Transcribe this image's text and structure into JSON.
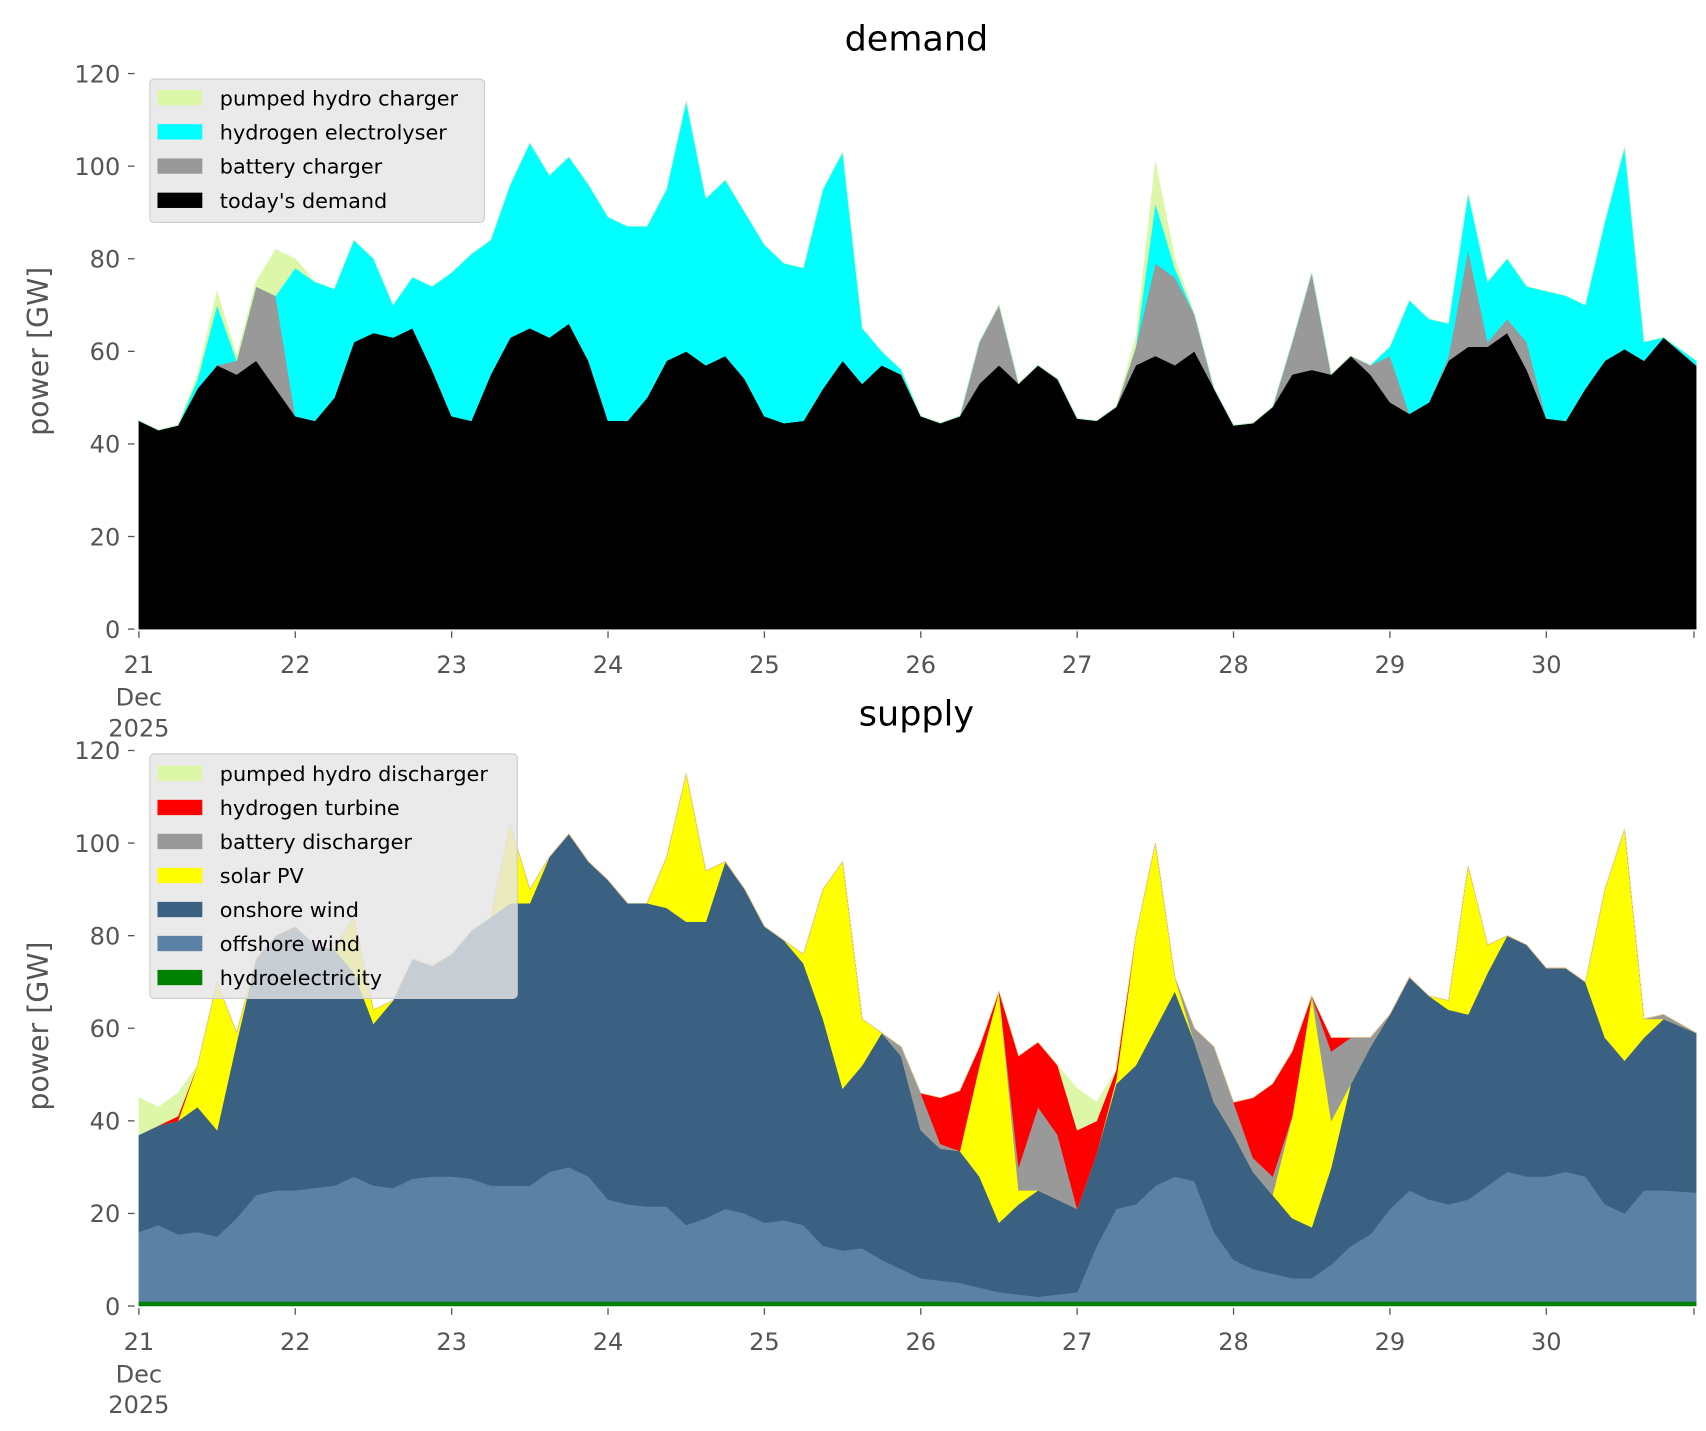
{
  "chart_data": [
    {
      "type": "area",
      "stacked": true,
      "title": "demand",
      "ylabel": "power [GW]",
      "xlabel": "",
      "ylim": [
        0,
        120
      ],
      "yticks": [
        0,
        20,
        40,
        60,
        80,
        100,
        120
      ],
      "x_start": "2025-12-21 00:00",
      "step_hours": 3,
      "xticks": [
        "21",
        "22",
        "23",
        "24",
        "25",
        "26",
        "27",
        "28",
        "29",
        "30"
      ],
      "xtick_sub": [
        "Dec",
        "2025"
      ],
      "grid": false,
      "legend_position": "top-left",
      "legend": [
        "pumped hydro charger",
        "hydrogen electrolyser",
        "battery charger",
        "today's demand"
      ],
      "series": [
        {
          "name": "today's demand",
          "color": "#000000",
          "values": [
            45,
            43,
            44,
            52,
            57,
            55,
            58,
            52,
            46,
            45,
            50,
            62,
            64,
            63,
            65,
            56,
            46,
            45,
            55,
            63,
            65,
            63,
            66,
            58,
            45,
            45,
            50,
            58,
            60,
            57,
            59,
            54,
            46,
            44.5,
            45,
            52,
            58,
            53,
            57,
            55,
            46,
            44.5,
            46,
            53,
            57,
            53,
            57,
            54,
            45.5,
            45,
            48,
            57,
            59,
            57,
            60,
            52,
            44,
            44.5,
            48,
            55,
            56,
            55,
            59,
            55,
            49,
            46.5,
            49,
            58,
            61,
            61,
            64,
            56,
            45.5,
            45,
            52,
            58,
            60.5,
            58,
            63,
            57
          ]
        },
        {
          "name": "battery charger",
          "color": "#999999",
          "values": [
            0,
            0,
            0,
            0,
            0,
            3,
            16,
            20,
            0,
            0,
            0,
            0,
            0,
            0,
            0,
            0,
            0,
            0,
            0,
            0,
            0,
            0,
            0,
            0,
            0,
            0,
            0,
            0,
            0,
            0,
            0,
            0,
            0,
            0,
            0,
            0,
            0,
            0,
            0,
            0,
            0,
            0,
            0,
            9,
            13,
            0,
            0,
            0,
            0,
            0,
            0,
            4,
            20,
            19,
            8,
            0,
            0,
            0,
            0,
            7,
            21,
            0,
            0,
            2,
            10,
            0,
            0,
            1,
            21,
            1,
            3,
            6,
            0,
            0,
            0,
            0,
            0,
            0,
            0,
            0
          ]
        },
        {
          "name": "hydrogen electrolyser",
          "color": "#00ffff",
          "values": [
            0,
            0,
            0,
            2,
            13,
            0,
            0,
            0,
            32,
            30,
            23.5,
            22,
            16,
            7,
            11,
            18,
            31,
            36,
            29,
            33,
            40,
            35,
            36,
            38,
            44,
            42,
            37,
            37,
            54,
            36,
            38,
            36,
            37,
            34.5,
            33,
            43,
            45,
            12,
            3,
            1,
            0,
            0,
            0,
            0,
            0,
            0,
            0,
            0,
            0,
            0,
            0,
            0,
            13,
            2,
            0,
            0,
            0,
            0,
            0,
            0,
            0,
            0,
            0,
            0,
            2,
            24.5,
            18,
            7,
            12,
            13,
            13,
            12,
            27.5,
            27,
            18,
            30,
            43.5,
            4,
            0,
            1
          ]
        },
        {
          "name": "pumped hydro charger",
          "color": "#dcf7a8",
          "values": [
            0,
            0,
            0,
            1,
            3,
            1,
            1,
            10,
            2,
            0,
            0,
            0,
            0,
            0,
            0,
            0,
            0,
            0,
            0,
            0,
            0,
            0,
            0,
            0,
            0,
            0,
            0,
            0,
            0,
            0,
            0,
            0,
            0,
            0,
            0,
            0,
            0,
            0,
            0,
            0,
            0,
            0,
            0,
            0,
            0,
            0,
            0,
            0,
            0,
            0,
            0,
            2,
            9,
            2,
            0,
            0,
            0,
            0,
            0,
            0,
            0,
            0,
            0,
            0,
            0,
            0,
            0,
            0,
            0,
            0,
            0,
            0,
            0,
            0,
            0,
            0,
            0,
            0,
            0,
            0
          ]
        }
      ]
    },
    {
      "type": "area",
      "stacked": true,
      "title": "supply",
      "ylabel": "power [GW]",
      "xlabel": "",
      "ylim": [
        0,
        120
      ],
      "yticks": [
        0,
        20,
        40,
        60,
        80,
        100,
        120
      ],
      "x_start": "2025-12-21 00:00",
      "step_hours": 3,
      "xticks": [
        "21",
        "22",
        "23",
        "24",
        "25",
        "26",
        "27",
        "28",
        "29",
        "30"
      ],
      "xtick_sub": [
        "Dec",
        "2025"
      ],
      "grid": false,
      "legend_position": "top-left",
      "legend": [
        "pumped hydro discharger",
        "hydrogen turbine",
        "battery discharger",
        "solar PV",
        "onshore wind",
        "offshore wind",
        "hydroelectricity"
      ],
      "series": [
        {
          "name": "hydroelectricity",
          "color": "#008000",
          "values": [
            1,
            1,
            1,
            1,
            1,
            1,
            1,
            1,
            1,
            1,
            1,
            1,
            1,
            1,
            1,
            1,
            1,
            1,
            1,
            1,
            1,
            1,
            1,
            1,
            1,
            1,
            1,
            1,
            1,
            1,
            1,
            1,
            1,
            1,
            1,
            1,
            1,
            1,
            1,
            1,
            1,
            1,
            1,
            1,
            1,
            1,
            1,
            1,
            1,
            1,
            1,
            1,
            1,
            1,
            1,
            1,
            1,
            1,
            1,
            1,
            1,
            1,
            1,
            1,
            1,
            1,
            1,
            1,
            1,
            1,
            1,
            1,
            1,
            1,
            1,
            1,
            1,
            1,
            1,
            1
          ]
        },
        {
          "name": "offshore wind",
          "color": "#5b82a4",
          "values": [
            15,
            16.5,
            14.5,
            15,
            14,
            18,
            23,
            24,
            24,
            24.5,
            25,
            27,
            25,
            24.5,
            26.5,
            27,
            27,
            26.5,
            25,
            25,
            25,
            28,
            29,
            27,
            22,
            21,
            20.5,
            20.5,
            16.5,
            18,
            20,
            19,
            17,
            17.5,
            16.5,
            12,
            11,
            11.5,
            9,
            7,
            5,
            4.5,
            4,
            3,
            2,
            1.5,
            1,
            1.5,
            2,
            12,
            20,
            21,
            25,
            27,
            26,
            15,
            9,
            7,
            6,
            5,
            5,
            8,
            12,
            14.5,
            20,
            24,
            22,
            21,
            22,
            25,
            28,
            27,
            27,
            28,
            27,
            21,
            19,
            24,
            24,
            23.5
          ]
        },
        {
          "name": "onshore wind",
          "color": "#3b6182",
          "values": [
            21,
            21.5,
            24.5,
            27,
            23,
            38,
            51,
            55,
            57,
            52.5,
            51,
            44,
            35,
            40.5,
            47.5,
            45.5,
            48,
            53.5,
            58,
            61,
            61,
            68,
            72,
            68,
            69,
            65,
            65.5,
            64.5,
            65.5,
            64,
            75,
            70,
            64,
            60.5,
            56.5,
            49,
            35,
            39.5,
            49,
            46,
            32,
            28.5,
            28.5,
            24,
            15,
            19.5,
            23,
            20.5,
            18,
            20,
            27,
            30,
            34,
            40,
            30,
            28,
            27,
            21,
            17,
            13,
            11,
            21,
            35,
            40.5,
            42,
            46,
            44,
            42,
            40,
            46,
            51,
            50,
            45,
            44,
            42,
            36,
            33,
            33,
            37,
            34.5
          ]
        },
        {
          "name": "solar PV",
          "color": "#ffff00",
          "values": [
            0,
            0,
            0,
            9,
            32,
            2,
            0,
            0,
            0,
            0,
            0,
            12,
            3,
            0,
            0,
            0,
            0,
            0,
            0,
            17,
            3,
            0,
            0,
            0,
            0,
            0,
            0,
            11,
            32,
            11,
            0,
            0,
            0,
            0,
            2,
            28,
            49,
            10,
            0,
            0,
            0,
            0,
            0,
            24,
            50,
            3,
            0,
            0,
            0,
            0,
            1,
            28,
            40,
            3,
            0,
            0,
            0,
            0,
            0,
            22,
            50,
            10,
            0,
            0,
            0,
            0,
            0,
            2,
            32,
            6,
            0,
            0,
            0,
            0,
            0,
            32,
            50,
            4,
            0,
            0
          ]
        },
        {
          "name": "battery discharger",
          "color": "#999999",
          "values": [
            0,
            0,
            0,
            0,
            0,
            0,
            0,
            0,
            0,
            0,
            0,
            0,
            0,
            0,
            0,
            0,
            0,
            0,
            0,
            0,
            0,
            0,
            0,
            0,
            0,
            0,
            0,
            0,
            0,
            0,
            0,
            0,
            0,
            0,
            0,
            0,
            0,
            0,
            0,
            2,
            8,
            1,
            0,
            0,
            0,
            5,
            18,
            14,
            0,
            0,
            0,
            0,
            0,
            0,
            3,
            12,
            7,
            3,
            4,
            0,
            0,
            15,
            10,
            2,
            0,
            0,
            0,
            0,
            0,
            0,
            0,
            0,
            0,
            0,
            0,
            0,
            0,
            0,
            1,
            0
          ]
        },
        {
          "name": "hydrogen turbine",
          "color": "#ff0000",
          "values": [
            0,
            0,
            1,
            0,
            0,
            0,
            0,
            0,
            0,
            0,
            0,
            0,
            0,
            0,
            0,
            0,
            0,
            0,
            0,
            0,
            0,
            0,
            0,
            0,
            0,
            0,
            0,
            0,
            0,
            0,
            0,
            0,
            0,
            0,
            0,
            0,
            0,
            0,
            0,
            0,
            0,
            10,
            13,
            4,
            0,
            24,
            14,
            15,
            17,
            7,
            2,
            0,
            0,
            0,
            0,
            0,
            0,
            13,
            20,
            14,
            0,
            3,
            0,
            0,
            0,
            0,
            0,
            0,
            0,
            0,
            0,
            0,
            0,
            0,
            0,
            0,
            0,
            0,
            0,
            0
          ]
        },
        {
          "name": "pumped hydro discharger",
          "color": "#dcf7a8",
          "values": [
            8,
            4,
            5,
            0,
            0,
            0,
            0,
            0,
            0,
            0,
            0,
            0,
            0,
            0,
            0,
            0,
            0,
            0,
            0,
            0,
            0,
            0,
            0,
            0,
            0,
            0,
            0,
            0,
            0,
            0,
            0,
            0,
            0,
            0,
            0,
            0,
            0,
            0,
            0,
            0,
            0,
            0,
            0,
            0,
            0,
            0,
            0,
            0,
            9,
            4,
            0,
            0,
            0,
            0,
            0,
            0,
            0,
            0,
            0,
            0,
            0,
            0,
            0,
            0,
            0,
            0,
            0,
            0,
            0,
            0,
            0,
            0,
            0,
            0,
            0,
            0,
            0,
            0,
            0,
            0
          ]
        }
      ]
    }
  ]
}
